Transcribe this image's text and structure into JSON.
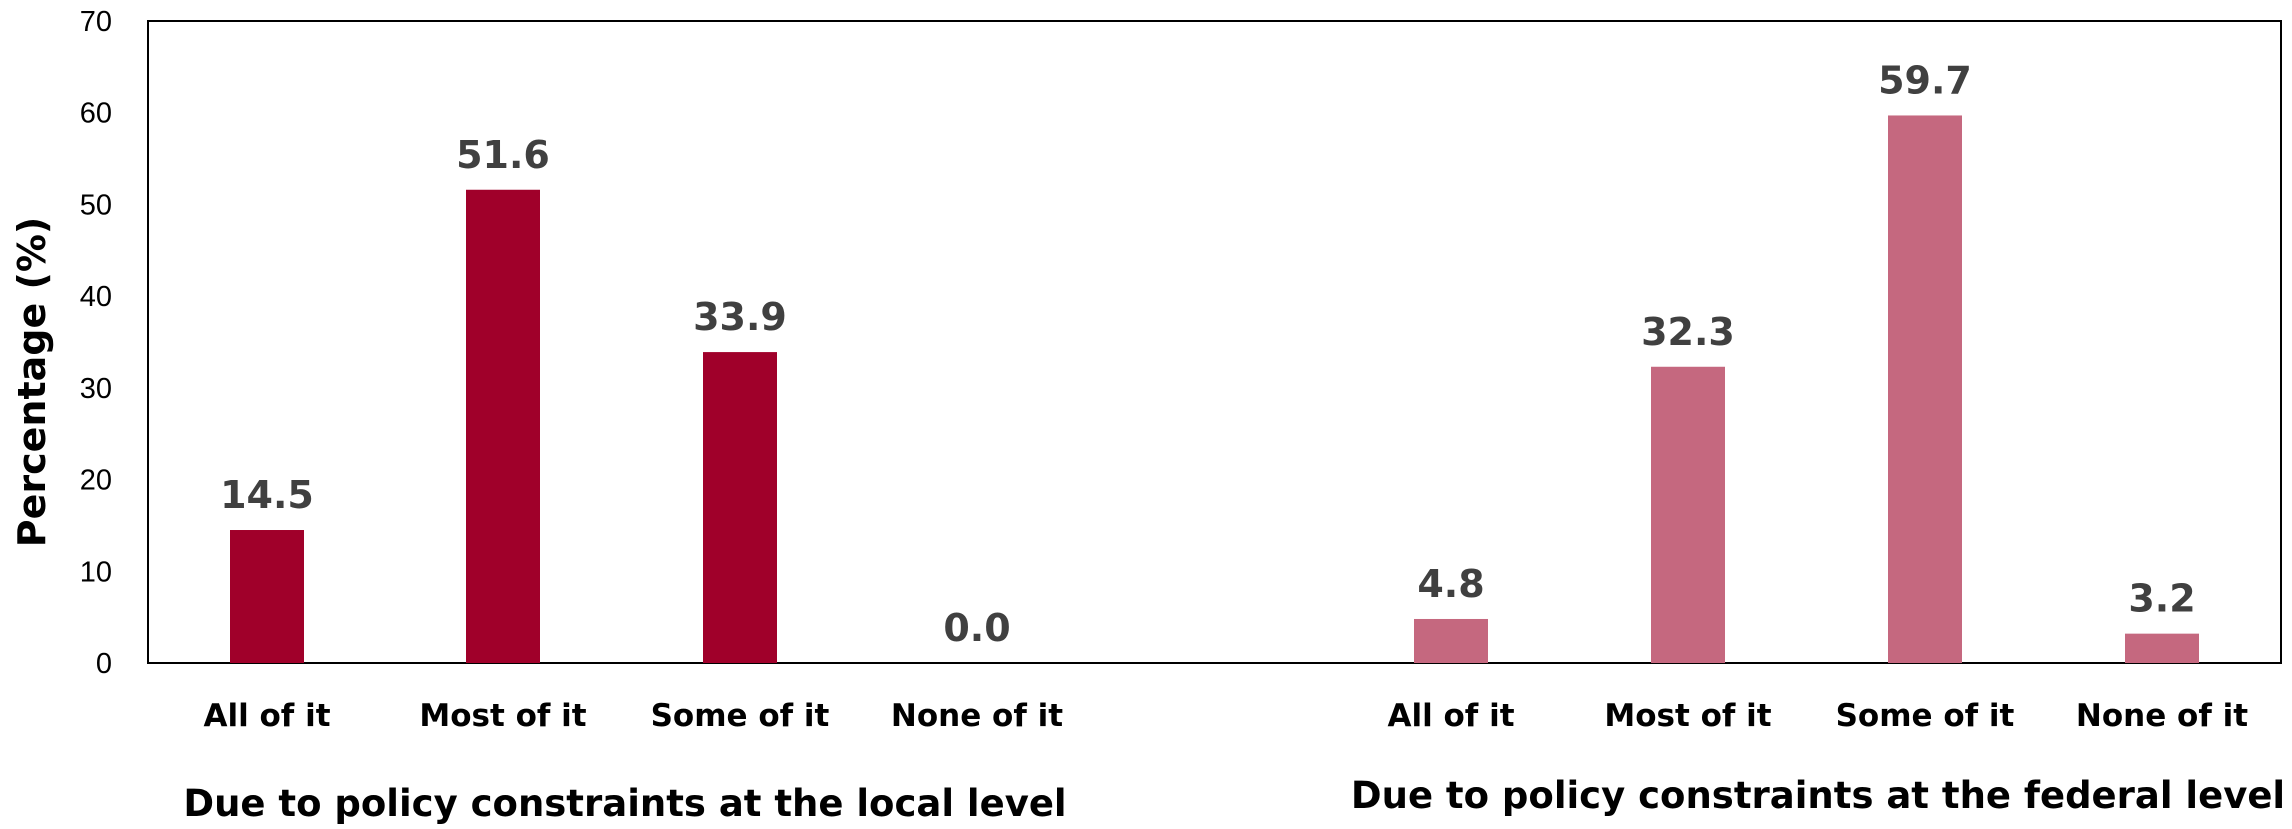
{
  "chart_data": {
    "type": "bar",
    "ylabel": "Percentage (%)",
    "ylim": [
      0,
      70
    ],
    "yticks": [
      0,
      10,
      20,
      30,
      40,
      50,
      60,
      70
    ],
    "grid": false,
    "legend": "none",
    "groups": [
      {
        "label": "Due to policy constraints at the local level",
        "color": "#a0002a",
        "categories": [
          "All of it",
          "Most of it",
          "Some of it",
          "None of it"
        ],
        "values": [
          14.5,
          51.6,
          33.9,
          0.0
        ],
        "value_labels": [
          "14.5",
          "51.6",
          "33.9",
          "0.0"
        ]
      },
      {
        "label": "Due to policy constraints at the federal level",
        "color": "#c5687f",
        "categories": [
          "All of it",
          "Most of it",
          "Some of it",
          "None of it"
        ],
        "values": [
          4.8,
          32.3,
          59.7,
          3.2
        ],
        "value_labels": [
          "4.8",
          "32.3",
          "59.7",
          "3.2"
        ]
      }
    ]
  }
}
